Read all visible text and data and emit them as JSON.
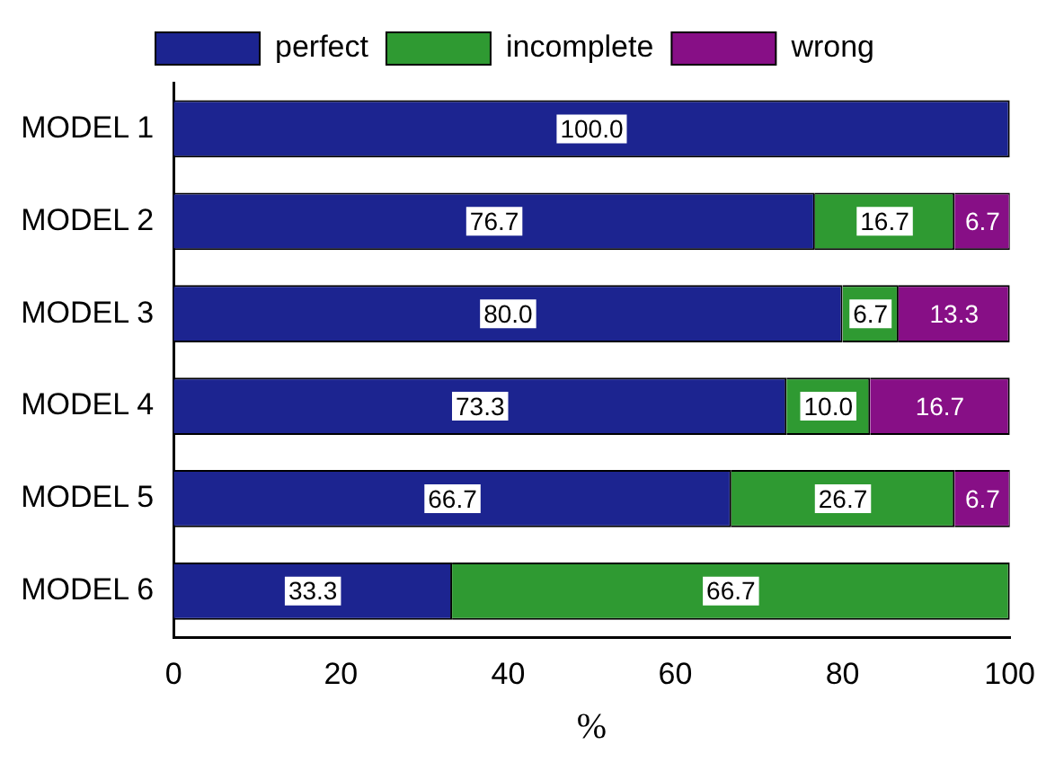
{
  "chart_data": {
    "type": "bar",
    "orientation": "horizontal",
    "stacked": true,
    "xlabel": "%",
    "categories": [
      "MODEL 1",
      "MODEL 2",
      "MODEL 3",
      "MODEL 4",
      "MODEL 5",
      "MODEL 6"
    ],
    "series": [
      {
        "name": "perfect",
        "color": "#1c2490",
        "values": [
          100.0,
          76.7,
          80.0,
          73.3,
          66.7,
          33.3
        ],
        "value_labels": [
          "100.0",
          "76.7",
          "80.0",
          "73.3",
          "66.7",
          "33.3"
        ]
      },
      {
        "name": "incomplete",
        "color": "#2f9a32",
        "values": [
          0,
          16.7,
          6.7,
          10.0,
          26.7,
          66.7
        ],
        "value_labels": [
          null,
          "16.7",
          "6.7",
          "10.0",
          "26.7",
          "66.7"
        ]
      },
      {
        "name": "wrong",
        "color": "#870f86",
        "values": [
          0,
          6.7,
          13.3,
          16.7,
          6.7,
          0
        ],
        "value_labels": [
          null,
          "6.7",
          "13.3",
          "16.7",
          "6.7",
          null
        ]
      }
    ],
    "xlim": [
      0,
      100
    ],
    "xticks": [
      0,
      20,
      40,
      60,
      80,
      100
    ],
    "grid": false,
    "legend": "top"
  }
}
